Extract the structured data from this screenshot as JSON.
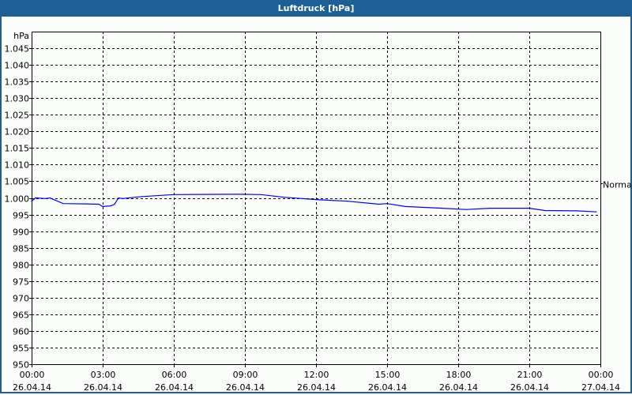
{
  "window": {
    "title": "Luftdruck [hPa]"
  },
  "chart_data": {
    "type": "line",
    "title": "Luftdruck [hPa]",
    "ylabel": "hPa",
    "ylim": [
      950,
      1050
    ],
    "yticks": [
      {
        "value": 950,
        "label": "950"
      },
      {
        "value": 955,
        "label": "955"
      },
      {
        "value": 960,
        "label": "960"
      },
      {
        "value": 965,
        "label": "965"
      },
      {
        "value": 970,
        "label": "970"
      },
      {
        "value": 975,
        "label": "975"
      },
      {
        "value": 980,
        "label": "980"
      },
      {
        "value": 985,
        "label": "985"
      },
      {
        "value": 990,
        "label": "990"
      },
      {
        "value": 995,
        "label": "995"
      },
      {
        "value": 1000,
        "label": "1.000"
      },
      {
        "value": 1005,
        "label": "1.005"
      },
      {
        "value": 1010,
        "label": "1.010"
      },
      {
        "value": 1015,
        "label": "1.015"
      },
      {
        "value": 1020,
        "label": "1.020"
      },
      {
        "value": 1025,
        "label": "1.025"
      },
      {
        "value": 1030,
        "label": "1.030"
      },
      {
        "value": 1035,
        "label": "1.035"
      },
      {
        "value": 1040,
        "label": "1.040"
      },
      {
        "value": 1045,
        "label": "1.045"
      }
    ],
    "xticks": [
      {
        "time": "00:00",
        "date": "26.04.14"
      },
      {
        "time": "03:00",
        "date": "26.04.14"
      },
      {
        "time": "06:00",
        "date": "26.04.14"
      },
      {
        "time": "09:00",
        "date": "26.04.14"
      },
      {
        "time": "12:00",
        "date": "26.04.14"
      },
      {
        "time": "15:00",
        "date": "26.04.14"
      },
      {
        "time": "18:00",
        "date": "26.04.14"
      },
      {
        "time": "21:00",
        "date": "26.04.14"
      },
      {
        "time": "00:00",
        "date": "27.04.14"
      }
    ],
    "grid": true,
    "reference": {
      "label": "Normal",
      "value": 1004.5
    },
    "series": [
      {
        "color": "#0000ff",
        "x": [
          "00:00",
          "00:10",
          "00:36",
          "00:46",
          "01:00",
          "01:20",
          "02:20",
          "02:50",
          "03:00",
          "03:20",
          "03:30",
          "03:40",
          "03:50",
          "04:40",
          "06:00",
          "08:40",
          "09:40",
          "10:40",
          "12:00",
          "13:20",
          "14:40",
          "15:00",
          "15:46",
          "17:20",
          "18:20",
          "19:20",
          "21:00",
          "21:40",
          "23:00",
          "23:50"
        ],
        "values": [
          999.0,
          1000.0,
          999.8,
          1000.0,
          999.3,
          998.3,
          998.2,
          998.1,
          997.4,
          997.6,
          998.1,
          1000.0,
          999.8,
          1000.4,
          1001.0,
          1001.1,
          1001.0,
          1000.2,
          999.5,
          999.0,
          998.1,
          998.3,
          997.4,
          996.9,
          996.5,
          996.9,
          996.9,
          996.2,
          996.1,
          995.8
        ]
      }
    ]
  }
}
